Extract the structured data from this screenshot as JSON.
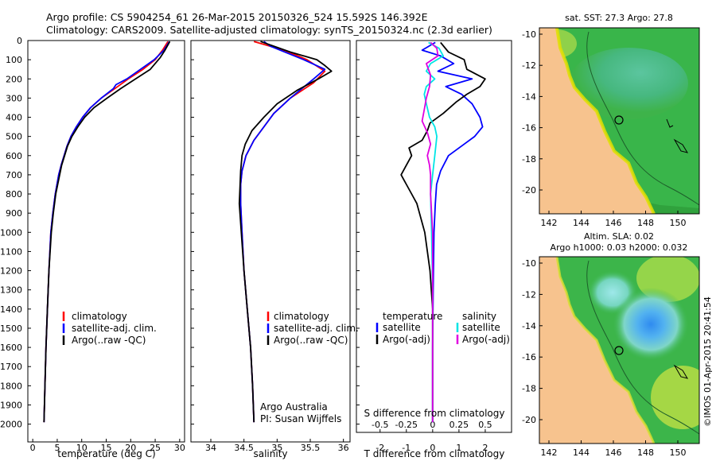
{
  "header": {
    "line1": "Argo profile: CS 5904254_61 26-Mar-2015 20150326_524 15.592S 146.392E",
    "line2": "Climatology: CARS2009. Satellite-adjusted climatology: synTS_20150324.nc (2.3d earlier)"
  },
  "colors": {
    "climatology": "#ff0000",
    "satellite": "#0000ff",
    "argo": "#000000",
    "salinity_satellite": "#00e5e5",
    "salinity_argo": "#e000e0",
    "land": "#f7c38e"
  },
  "depth_axis": {
    "ticks": [
      "0",
      "100",
      "200",
      "300",
      "400",
      "500",
      "600",
      "700",
      "800",
      "900",
      "1000",
      "1100",
      "1200",
      "1300",
      "1400",
      "1500",
      "1600",
      "1700",
      "1800",
      "1900",
      "2000"
    ]
  },
  "chart_data": [
    {
      "type": "line",
      "name": "temperature-profile",
      "xlabel": "temperature (deg C)",
      "ylabel": "pressure (dbar)",
      "xlim": [
        -1,
        31
      ],
      "ylim": [
        2080,
        0
      ],
      "x_ticks": [
        "0",
        "5",
        "10",
        "15",
        "20",
        "25",
        "30"
      ],
      "legend": [
        "climatology",
        "satellite-adj. clim.",
        "Argo(..raw -QC)"
      ],
      "series": [
        {
          "name": "climatology",
          "color": "#ff0000",
          "depth": [
            5,
            50,
            100,
            150,
            200,
            250,
            300,
            350,
            400,
            450,
            500,
            550,
            600,
            650,
            700,
            800,
            900,
            1000,
            1200,
            1400,
            1600,
            1800,
            1990
          ],
          "values": [
            27.6,
            26.5,
            25.0,
            22.5,
            19.5,
            16.8,
            14.0,
            11.8,
            10.2,
            8.9,
            7.8,
            7.0,
            6.4,
            5.8,
            5.3,
            4.6,
            4.1,
            3.7,
            3.3,
            3.0,
            2.7,
            2.5,
            2.3
          ]
        },
        {
          "name": "satellite-adj. clim.",
          "color": "#0000ff",
          "depth": [
            5,
            50,
            100,
            150,
            200,
            230,
            250,
            300,
            350,
            400,
            450,
            500,
            550,
            600,
            650,
            700,
            800,
            900,
            1000,
            1200,
            1400,
            1600,
            1800,
            1990
          ],
          "values": [
            27.9,
            26.8,
            24.8,
            22.0,
            19.2,
            17.0,
            16.5,
            14.0,
            11.8,
            10.2,
            8.9,
            7.8,
            7.0,
            6.4,
            5.8,
            5.3,
            4.6,
            4.1,
            3.7,
            3.3,
            3.0,
            2.7,
            2.5,
            2.3
          ]
        },
        {
          "name": "Argo(..raw -QC)",
          "color": "#000000",
          "depth": [
            5,
            50,
            90,
            150,
            200,
            250,
            300,
            350,
            400,
            450,
            500,
            550,
            600,
            650,
            700,
            800,
            900,
            1000,
            1200,
            1400,
            1600,
            1800,
            1990
          ],
          "values": [
            28.0,
            27.0,
            26.0,
            24.0,
            21.0,
            18.0,
            15.2,
            12.5,
            10.6,
            9.2,
            8.0,
            7.1,
            6.5,
            5.9,
            5.5,
            4.7,
            4.2,
            3.8,
            3.3,
            3.0,
            2.7,
            2.5,
            2.3
          ]
        }
      ]
    },
    {
      "type": "line",
      "name": "salinity-profile",
      "xlabel": "salinity",
      "ylabel": "pressure (dbar)",
      "xlim": [
        33.7,
        36.1
      ],
      "ylim": [
        2080,
        0
      ],
      "x_ticks": [
        "34",
        "34.5",
        "35",
        "35.5",
        "36"
      ],
      "legend": [
        "climatology",
        "satellite-adj. clim.",
        "Argo(..raw -QC)"
      ],
      "series": [
        {
          "name": "climatology",
          "color": "#ff0000",
          "depth": [
            5,
            50,
            100,
            160,
            220,
            300,
            380,
            450,
            520,
            600,
            680,
            750,
            850,
            1000,
            1200,
            1400,
            1600,
            1800,
            1990
          ],
          "values": [
            34.65,
            35.1,
            35.45,
            35.72,
            35.55,
            35.2,
            34.95,
            34.8,
            34.65,
            34.53,
            34.47,
            34.45,
            34.45,
            34.47,
            34.5,
            34.55,
            34.6,
            34.63,
            34.65
          ]
        },
        {
          "name": "satellite-adj. clim.",
          "color": "#0000ff",
          "depth": [
            5,
            30,
            100,
            150,
            200,
            300,
            380,
            450,
            520,
            600,
            680,
            750,
            850,
            1000,
            1200,
            1400,
            1600,
            1800,
            1990
          ],
          "values": [
            34.8,
            34.9,
            35.4,
            35.72,
            35.55,
            35.2,
            34.95,
            34.8,
            34.65,
            34.53,
            34.47,
            34.45,
            34.45,
            34.47,
            34.5,
            34.55,
            34.6,
            34.63,
            34.65
          ]
        },
        {
          "name": "Argo(..raw -QC)",
          "color": "#000000",
          "depth": [
            5,
            60,
            100,
            130,
            160,
            200,
            260,
            330,
            400,
            470,
            540,
            600,
            680,
            760,
            850,
            1000,
            1200,
            1400,
            1600,
            1800,
            1990
          ],
          "values": [
            34.75,
            35.2,
            35.6,
            35.72,
            35.82,
            35.62,
            35.3,
            35.0,
            34.8,
            34.62,
            34.52,
            34.47,
            34.45,
            34.44,
            34.43,
            34.46,
            34.5,
            34.55,
            34.6,
            34.63,
            34.65
          ]
        }
      ]
    },
    {
      "type": "line",
      "name": "difference-profile",
      "xlabel": "T difference from climatology",
      "xlabel_top": "S difference from climatology",
      "ylabel": "pressure (dbar)",
      "xlim": [
        -2.9,
        3.0
      ],
      "ylim": [
        2080,
        0
      ],
      "x_ticks": [
        "-2",
        "-1",
        "0",
        "1",
        "2"
      ],
      "x_ticks_top": [
        "-0.5",
        "-0.25",
        "0",
        "0.25",
        "0.5"
      ],
      "legend_titles": [
        "temperature",
        "salinity"
      ],
      "legend": [
        "satellite",
        "Argo(-adj)",
        "satellite",
        "Argo(-adj)"
      ],
      "series": [
        {
          "name": "temperature satellite",
          "color": "#0000ff",
          "depth": [
            10,
            50,
            80,
            120,
            160,
            200,
            240,
            280,
            330,
            400,
            450,
            500,
            540,
            600,
            680,
            750,
            850,
            1000,
            1300,
            1600,
            1990
          ],
          "values": [
            0.1,
            -0.4,
            0.3,
            0.8,
            0.2,
            1.5,
            0.5,
            1.1,
            1.5,
            1.8,
            1.9,
            1.6,
            1.2,
            0.6,
            0.3,
            0.15,
            0.1,
            0.05,
            0.02,
            0.0,
            0.0
          ]
        },
        {
          "name": "temperature Argo(-adj)",
          "color": "#000000",
          "depth": [
            10,
            60,
            100,
            150,
            200,
            240,
            280,
            320,
            380,
            430,
            470,
            520,
            560,
            600,
            650,
            700,
            750,
            800,
            850,
            900,
            950,
            1000,
            1100,
            1200,
            1400,
            1600,
            1800,
            1990
          ],
          "values": [
            0.3,
            0.6,
            1.2,
            1.3,
            2.0,
            1.8,
            1.3,
            0.9,
            0.4,
            -0.1,
            -0.2,
            -0.4,
            -0.9,
            -0.8,
            -1.0,
            -1.2,
            -1.0,
            -0.8,
            -0.6,
            -0.5,
            -0.4,
            -0.3,
            -0.2,
            -0.1,
            0.0,
            0.0,
            0.0,
            0.0
          ]
        },
        {
          "name": "salinity satellite",
          "color": "#00e5e5",
          "depth": [
            10,
            40,
            80,
            120,
            160,
            200,
            240,
            280,
            330,
            400,
            450,
            500,
            600,
            700,
            800,
            1000,
            1300,
            1600,
            1990
          ],
          "values": [
            -0.04,
            0.06,
            0.1,
            -0.02,
            -0.06,
            0.02,
            -0.06,
            -0.08,
            -0.06,
            -0.03,
            0.02,
            0.04,
            0.02,
            0.0,
            -0.02,
            -0.01,
            0.0,
            0.0,
            0.0
          ]
        },
        {
          "name": "salinity Argo(-adj)",
          "color": "#e000e0",
          "depth": [
            10,
            40,
            80,
            120,
            180,
            240,
            300,
            360,
            420,
            480,
            540,
            600,
            650,
            700,
            800,
            900,
            1000,
            1200,
            1500,
            1800,
            1990
          ],
          "values": [
            -0.02,
            0.04,
            0.05,
            -0.06,
            -0.02,
            -0.03,
            -0.06,
            -0.08,
            -0.1,
            -0.05,
            -0.02,
            -0.05,
            -0.03,
            -0.02,
            -0.02,
            -0.01,
            0.0,
            0.0,
            0.0,
            0.0,
            0.0
          ]
        }
      ]
    }
  ],
  "legend_labels": {
    "temperature_title": "temperature",
    "salinity_title": "salinity",
    "satellite": "satellite",
    "argo_adj": "Argo(-adj)"
  },
  "credits": {
    "org": "Argo Australia",
    "pi": "PI: Susan Wijffels"
  },
  "maps": {
    "sst": {
      "title": "sat. SST: 27.3 Argo: 27.8",
      "y_ticks": [
        "-10",
        "-12",
        "-14",
        "-16",
        "-18",
        "-20"
      ],
      "x_ticks": [
        "142",
        "144",
        "146",
        "148",
        "150"
      ]
    },
    "sla": {
      "title1": "Altim. SLA: 0.02",
      "title2": "Argo h1000: 0.03 h2000: 0.032",
      "y_ticks": [
        "-10",
        "-12",
        "-14",
        "-16",
        "-18",
        "-20"
      ],
      "x_ticks": [
        "142",
        "144",
        "146",
        "148",
        "150"
      ]
    }
  },
  "footer": {
    "stamp": "©IMOS 01-Apr-2015 20:41:54"
  }
}
